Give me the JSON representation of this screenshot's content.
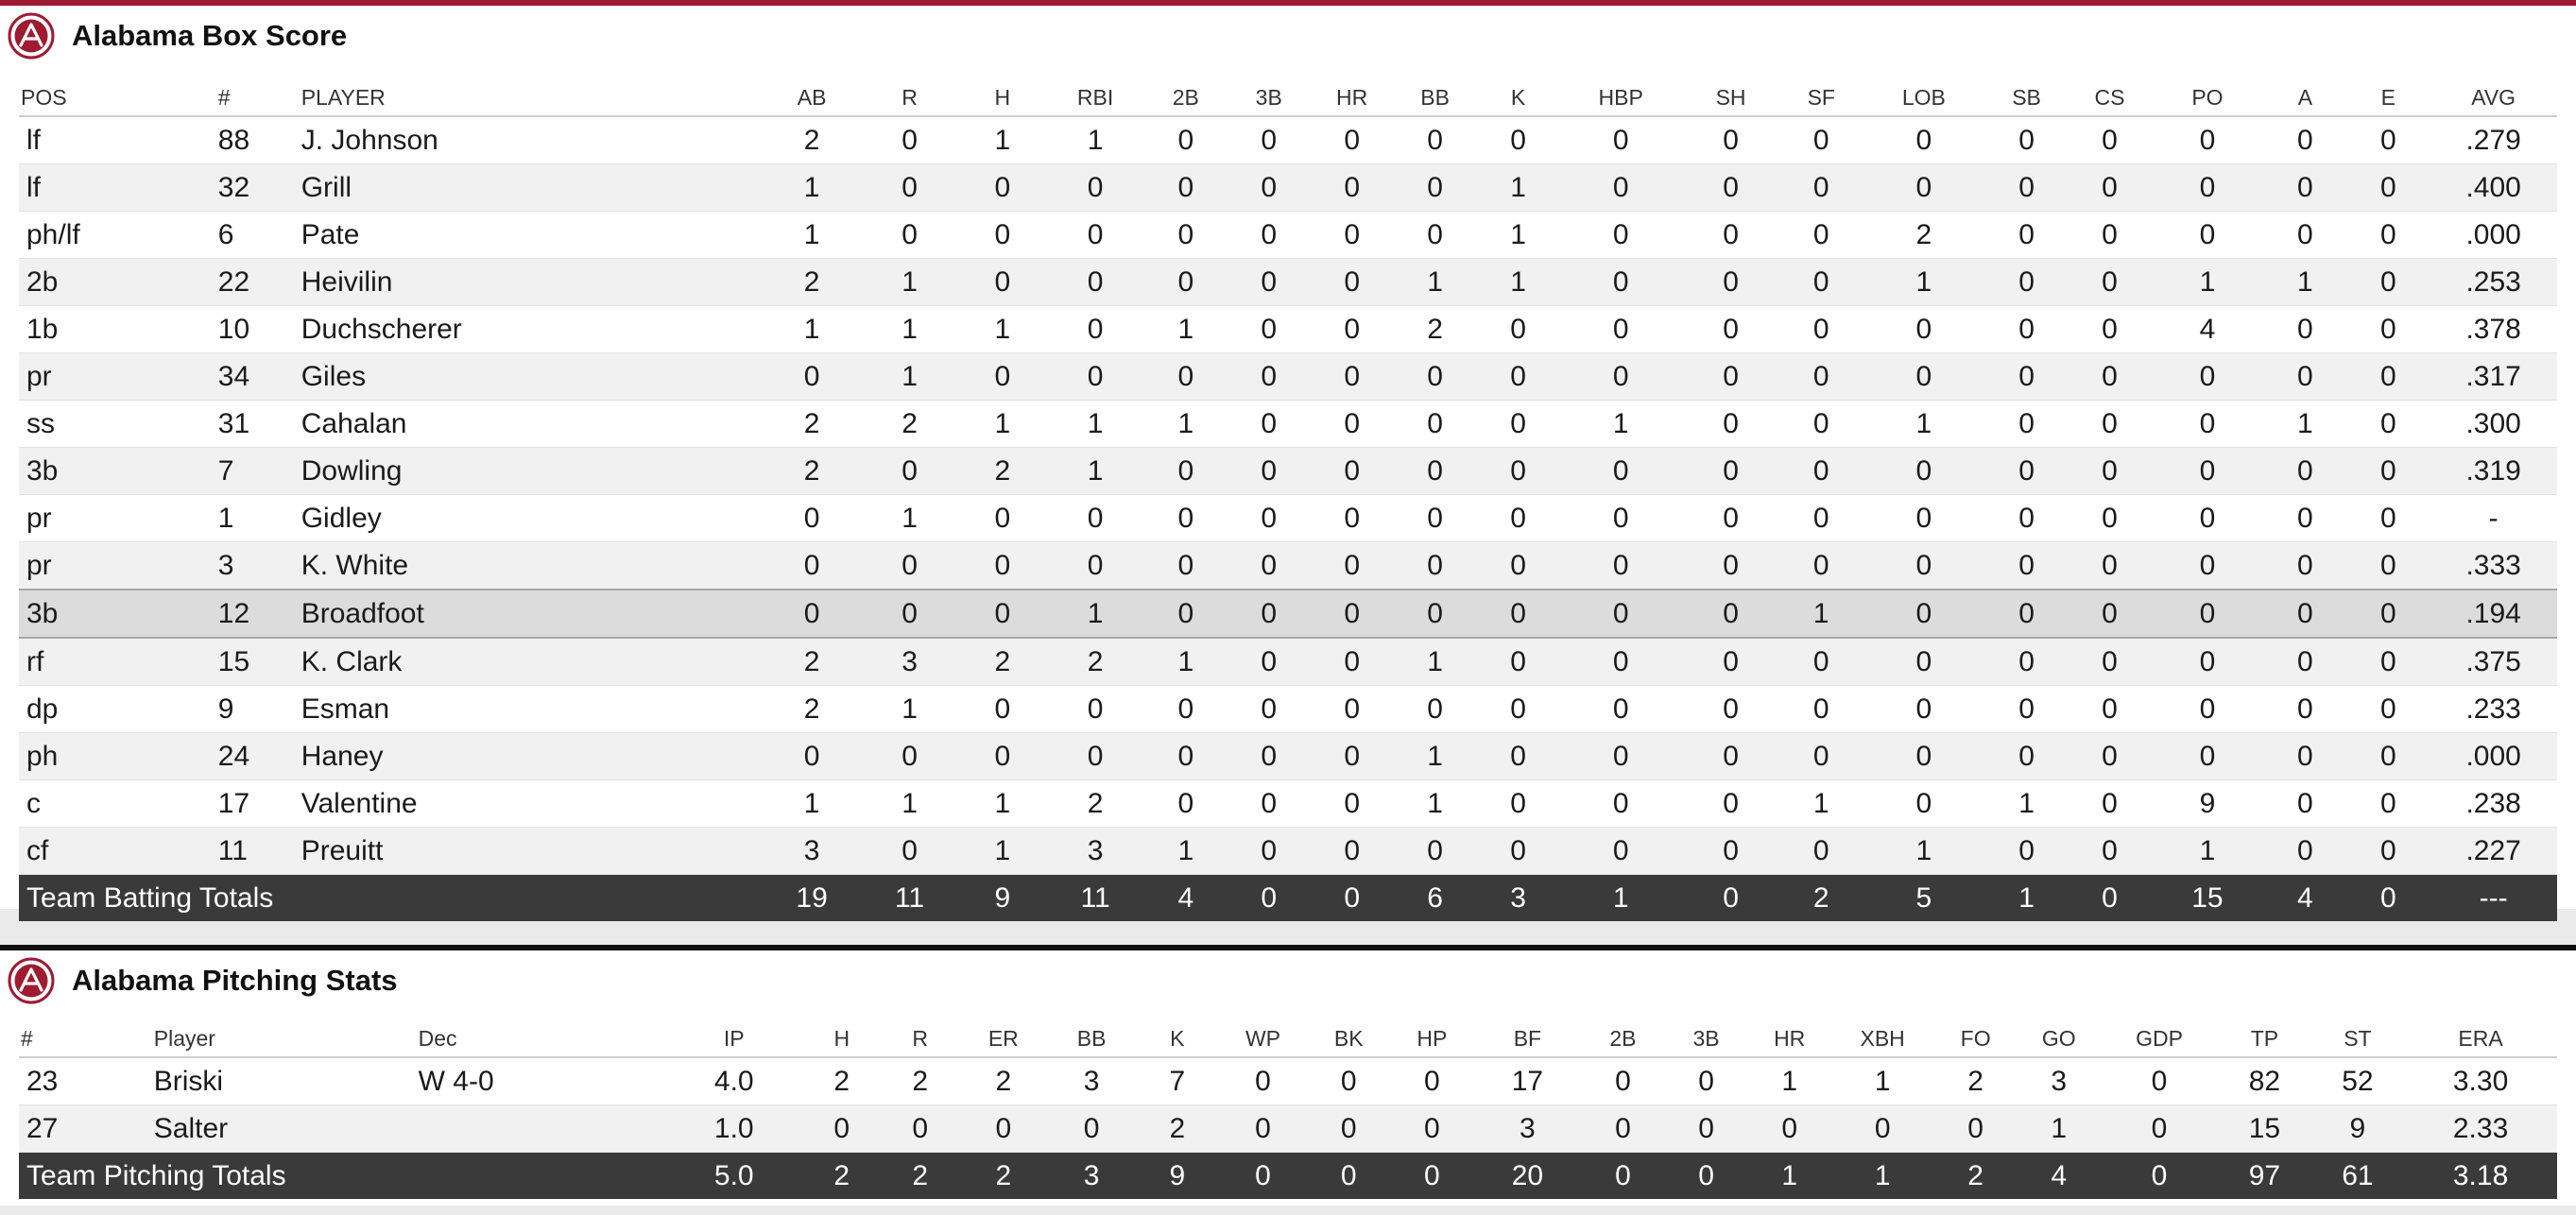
{
  "colors": {
    "accent": "#9e1b32",
    "total_row": "#3a3a3a",
    "pitch_border": "#111111"
  },
  "logo": {
    "icon": "alabama-script-a-logo-icon"
  },
  "batting": {
    "title": "Alabama Box Score",
    "headers": [
      "POS",
      "#",
      "PLAYER",
      "AB",
      "R",
      "H",
      "RBI",
      "2B",
      "3B",
      "HR",
      "BB",
      "K",
      "HBP",
      "SH",
      "SF",
      "LOB",
      "SB",
      "CS",
      "PO",
      "A",
      "E",
      "AVG"
    ],
    "rows": [
      [
        "lf",
        "88",
        "J. Johnson",
        "2",
        "0",
        "1",
        "1",
        "0",
        "0",
        "0",
        "0",
        "0",
        "0",
        "0",
        "0",
        "0",
        "0",
        "0",
        "0",
        "0",
        "0",
        ".279"
      ],
      [
        "lf",
        "32",
        "Grill",
        "1",
        "0",
        "0",
        "0",
        "0",
        "0",
        "0",
        "0",
        "1",
        "0",
        "0",
        "0",
        "0",
        "0",
        "0",
        "0",
        "0",
        "0",
        ".400"
      ],
      [
        "ph/lf",
        "6",
        "Pate",
        "1",
        "0",
        "0",
        "0",
        "0",
        "0",
        "0",
        "0",
        "1",
        "0",
        "0",
        "0",
        "2",
        "0",
        "0",
        "0",
        "0",
        "0",
        ".000"
      ],
      [
        "2b",
        "22",
        "Heivilin",
        "2",
        "1",
        "0",
        "0",
        "0",
        "0",
        "0",
        "1",
        "1",
        "0",
        "0",
        "0",
        "1",
        "0",
        "0",
        "1",
        "1",
        "0",
        ".253"
      ],
      [
        "1b",
        "10",
        "Duchscherer",
        "1",
        "1",
        "1",
        "0",
        "1",
        "0",
        "0",
        "2",
        "0",
        "0",
        "0",
        "0",
        "0",
        "0",
        "0",
        "4",
        "0",
        "0",
        ".378"
      ],
      [
        "pr",
        "34",
        "Giles",
        "0",
        "1",
        "0",
        "0",
        "0",
        "0",
        "0",
        "0",
        "0",
        "0",
        "0",
        "0",
        "0",
        "0",
        "0",
        "0",
        "0",
        "0",
        ".317"
      ],
      [
        "ss",
        "31",
        "Cahalan",
        "2",
        "2",
        "1",
        "1",
        "1",
        "0",
        "0",
        "0",
        "0",
        "1",
        "0",
        "0",
        "1",
        "0",
        "0",
        "0",
        "1",
        "0",
        ".300"
      ],
      [
        "3b",
        "7",
        "Dowling",
        "2",
        "0",
        "2",
        "1",
        "0",
        "0",
        "0",
        "0",
        "0",
        "0",
        "0",
        "0",
        "0",
        "0",
        "0",
        "0",
        "0",
        "0",
        ".319"
      ],
      [
        "pr",
        "1",
        "Gidley",
        "0",
        "1",
        "0",
        "0",
        "0",
        "0",
        "0",
        "0",
        "0",
        "0",
        "0",
        "0",
        "0",
        "0",
        "0",
        "0",
        "0",
        "0",
        "-"
      ],
      [
        "pr",
        "3",
        "K. White",
        "0",
        "0",
        "0",
        "0",
        "0",
        "0",
        "0",
        "0",
        "0",
        "0",
        "0",
        "0",
        "0",
        "0",
        "0",
        "0",
        "0",
        "0",
        ".333"
      ],
      [
        "3b",
        "12",
        "Broadfoot",
        "0",
        "0",
        "0",
        "1",
        "0",
        "0",
        "0",
        "0",
        "0",
        "0",
        "0",
        "1",
        "0",
        "0",
        "0",
        "0",
        "0",
        "0",
        ".194"
      ],
      [
        "rf",
        "15",
        "K. Clark",
        "2",
        "3",
        "2",
        "2",
        "1",
        "0",
        "0",
        "1",
        "0",
        "0",
        "0",
        "0",
        "0",
        "0",
        "0",
        "0",
        "0",
        "0",
        ".375"
      ],
      [
        "dp",
        "9",
        "Esman",
        "2",
        "1",
        "0",
        "0",
        "0",
        "0",
        "0",
        "0",
        "0",
        "0",
        "0",
        "0",
        "0",
        "0",
        "0",
        "0",
        "0",
        "0",
        ".233"
      ],
      [
        "ph",
        "24",
        "Haney",
        "0",
        "0",
        "0",
        "0",
        "0",
        "0",
        "0",
        "1",
        "0",
        "0",
        "0",
        "0",
        "0",
        "0",
        "0",
        "0",
        "0",
        "0",
        ".000"
      ],
      [
        "c",
        "17",
        "Valentine",
        "1",
        "1",
        "1",
        "2",
        "0",
        "0",
        "0",
        "1",
        "0",
        "0",
        "0",
        "1",
        "0",
        "1",
        "0",
        "9",
        "0",
        "0",
        ".238"
      ],
      [
        "cf",
        "11",
        "Preuitt",
        "3",
        "0",
        "1",
        "3",
        "1",
        "0",
        "0",
        "0",
        "0",
        "0",
        "0",
        "0",
        "1",
        "0",
        "0",
        "1",
        "0",
        "0",
        ".227"
      ]
    ],
    "totals_label": "Team Batting Totals",
    "totals": [
      "19",
      "11",
      "9",
      "11",
      "4",
      "0",
      "0",
      "6",
      "3",
      "1",
      "0",
      "2",
      "5",
      "1",
      "0",
      "15",
      "4",
      "0",
      "---"
    ]
  },
  "pitching": {
    "title": "Alabama Pitching Stats",
    "headers": [
      "#",
      "Player",
      "Dec",
      "IP",
      "H",
      "R",
      "ER",
      "BB",
      "K",
      "WP",
      "BK",
      "HP",
      "BF",
      "2B",
      "3B",
      "HR",
      "XBH",
      "FO",
      "GO",
      "GDP",
      "TP",
      "ST",
      "ERA"
    ],
    "rows": [
      [
        "23",
        "Briski",
        "W 4-0",
        "4.0",
        "2",
        "2",
        "2",
        "3",
        "7",
        "0",
        "0",
        "0",
        "17",
        "0",
        "0",
        "1",
        "1",
        "2",
        "3",
        "0",
        "82",
        "52",
        "3.30"
      ],
      [
        "27",
        "Salter",
        "",
        "1.0",
        "0",
        "0",
        "0",
        "0",
        "2",
        "0",
        "0",
        "0",
        "3",
        "0",
        "0",
        "0",
        "0",
        "0",
        "1",
        "0",
        "15",
        "9",
        "2.33"
      ]
    ],
    "totals_label": "Team Pitching Totals",
    "totals": [
      "5.0",
      "2",
      "2",
      "2",
      "3",
      "9",
      "0",
      "0",
      "0",
      "20",
      "0",
      "0",
      "1",
      "1",
      "2",
      "4",
      "0",
      "97",
      "61",
      "3.18"
    ]
  }
}
